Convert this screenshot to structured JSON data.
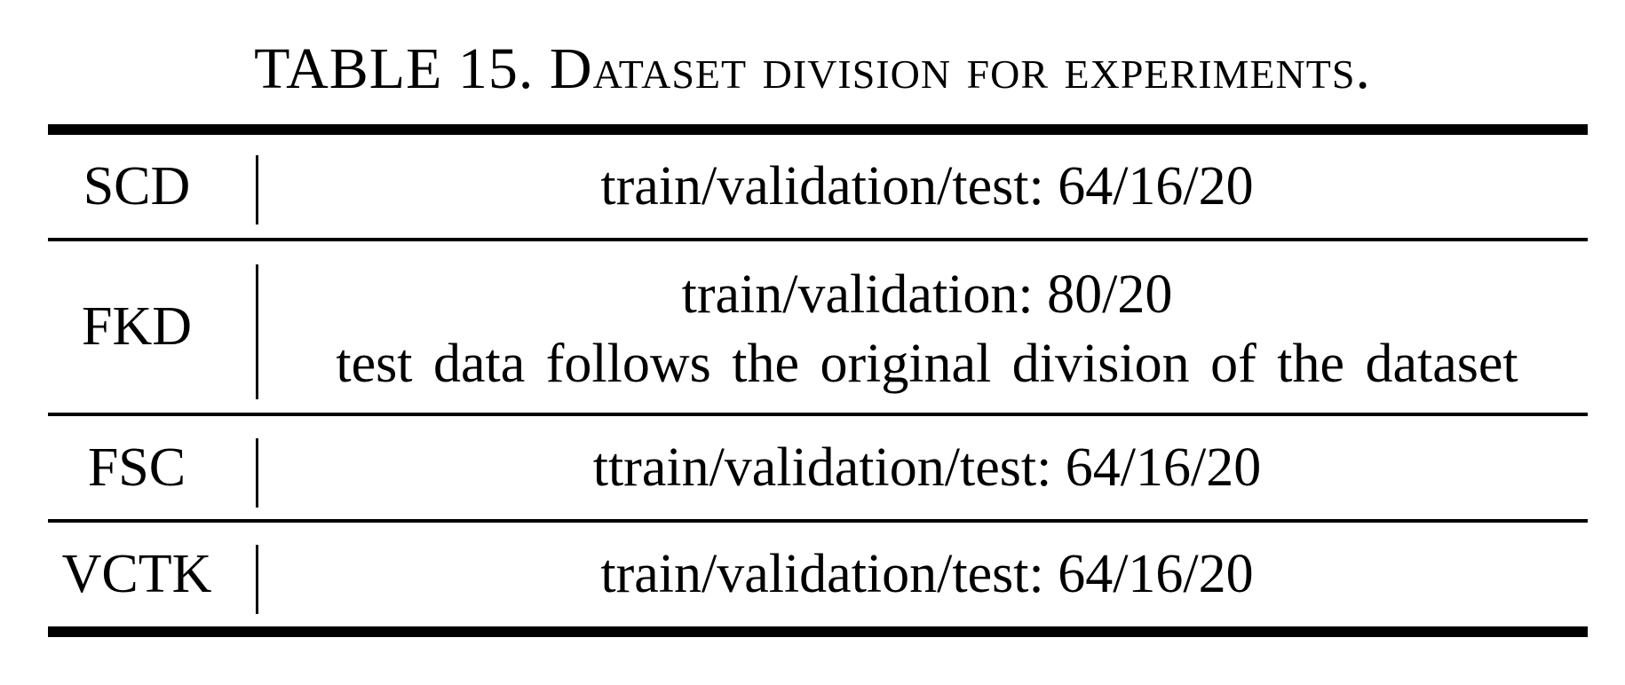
{
  "caption": {
    "label": "TABLE 15.",
    "text": "Dataset division for experiments."
  },
  "rows": [
    {
      "name": "SCD",
      "split": [
        "train/validation/test: 64/16/20"
      ]
    },
    {
      "name": "FKD",
      "split": [
        "train/validation: 80/20",
        "test data follows the original division of the dataset"
      ]
    },
    {
      "name": "FSC",
      "split": [
        "ttrain/validation/test: 64/16/20"
      ]
    },
    {
      "name": "VCTK",
      "split": [
        "train/validation/test: 64/16/20"
      ]
    }
  ]
}
